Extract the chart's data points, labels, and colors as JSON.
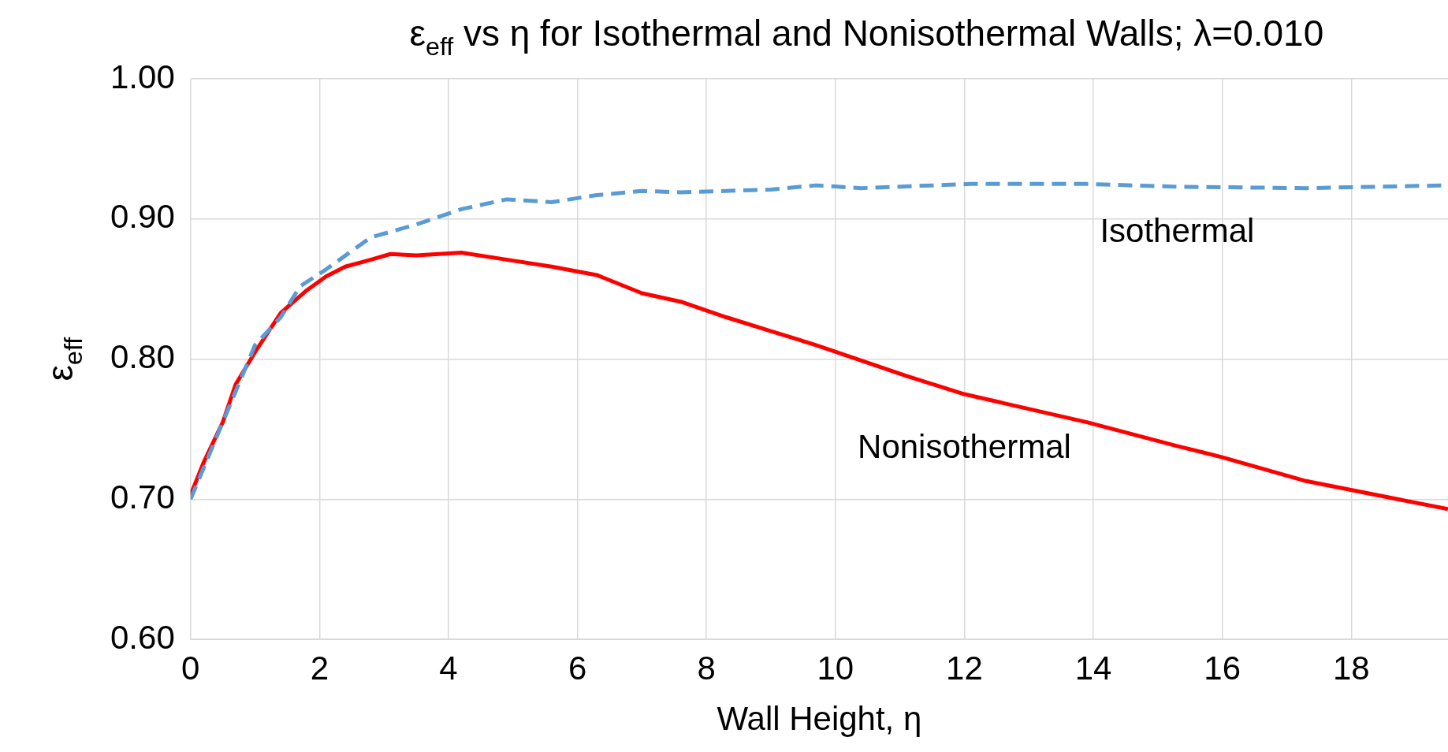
{
  "chart_data": {
    "type": "line",
    "title": "ε$_{eff}$ vs η for Isothermal and Nonisothermal Walls; λ=0.010",
    "xlabel": "Wall Height, η",
    "ylabel": "ε$_{eff}$",
    "xlim": [
      0,
      19.5
    ],
    "xticks": [
      0,
      2,
      4,
      6,
      8,
      10,
      12,
      14,
      16,
      18
    ],
    "ylim": [
      0.6,
      1.0
    ],
    "yticks": [
      {
        "value": 0.6,
        "label": "0.60"
      },
      {
        "value": 0.7,
        "label": "0.70"
      },
      {
        "value": 0.8,
        "label": "0.80"
      },
      {
        "value": 0.9,
        "label": "0.90"
      },
      {
        "value": 1.0,
        "label": "1.00"
      }
    ],
    "grid": true,
    "legend": false,
    "marker": "none",
    "series": [
      {
        "name": "Isothermal",
        "color": "#5b9bd5",
        "line_style": "dashed",
        "x": [
          0,
          1.0,
          1.4,
          1.7,
          2.1,
          2.8,
          3.5,
          4.2,
          4.9,
          5.6,
          6.3,
          7.0,
          7.6,
          8.3,
          9.0,
          9.7,
          10.4,
          12.1,
          13.9,
          15.3,
          17.3,
          19.5
        ],
        "values": [
          0.7,
          0.81,
          0.83,
          0.852,
          0.864,
          0.887,
          0.896,
          0.907,
          0.914,
          0.912,
          0.917,
          0.92,
          0.919,
          0.92,
          0.921,
          0.924,
          0.922,
          0.925,
          0.925,
          0.923,
          0.922,
          0.924
        ]
      },
      {
        "name": "Nonisothermal",
        "color": "#ff0000",
        "line_style": "solid",
        "x": [
          0,
          0.2,
          0.5,
          0.7,
          1.0,
          1.4,
          1.8,
          2.1,
          2.4,
          2.8,
          3.1,
          3.5,
          4.2,
          4.9,
          5.6,
          6.3,
          7.0,
          7.6,
          8.3,
          9.0,
          9.7,
          10.4,
          11.1,
          12.0,
          13.9,
          15.3,
          16.0,
          17.3,
          19.5
        ],
        "values": [
          0.703,
          0.726,
          0.755,
          0.782,
          0.805,
          0.833,
          0.849,
          0.859,
          0.866,
          0.871,
          0.875,
          0.874,
          0.876,
          0.871,
          0.866,
          0.86,
          0.847,
          0.841,
          0.83,
          0.82,
          0.81,
          0.799,
          0.788,
          0.775,
          0.755,
          0.738,
          0.73,
          0.713,
          0.693
        ]
      }
    ]
  }
}
